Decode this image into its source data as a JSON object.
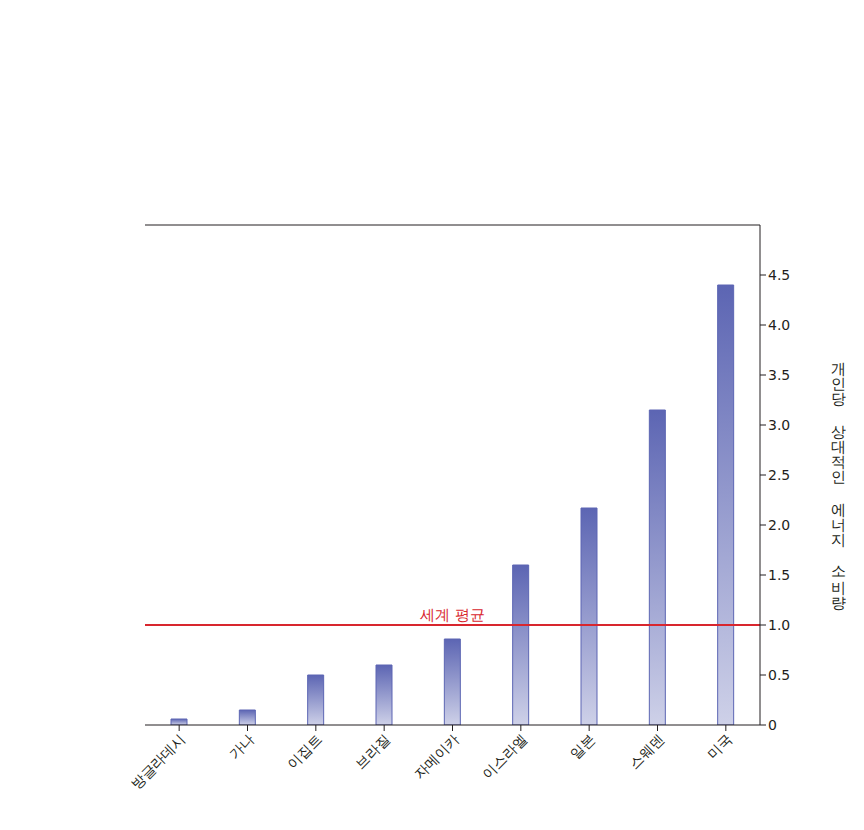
{
  "chart_data": {
    "type": "bar",
    "y_label": "개인당 상대적인 에너지 소비량",
    "categories": [
      "방글라데시",
      "가나",
      "이집트",
      "브라질",
      "자메이카",
      "이스라엘",
      "일본",
      "스웨덴",
      "미국"
    ],
    "values": [
      0.06,
      0.15,
      0.5,
      0.6,
      0.86,
      1.6,
      2.17,
      3.15,
      4.4
    ],
    "color": "#5c65b3",
    "ylim": [
      0,
      5
    ],
    "yticks": [
      0,
      0.5,
      {
        "value": 1,
        "label": "1.0"
      },
      1.5,
      {
        "value": 2,
        "label": "2.0"
      },
      2.5,
      {
        "value": 3,
        "label": "3.0"
      },
      3.5,
      {
        "value": 4,
        "label": "4.0"
      },
      4.5
    ],
    "grid": true,
    "reference_line": {
      "value": 1,
      "label": "세계 평균",
      "color": "#d8262e"
    }
  }
}
